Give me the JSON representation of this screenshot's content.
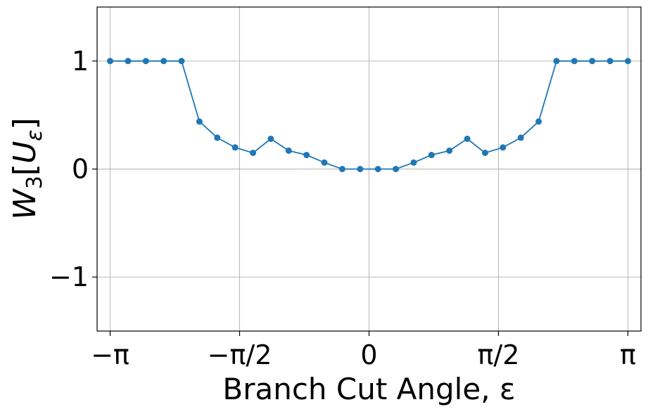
{
  "chart_data": {
    "type": "line",
    "title": "",
    "xlabel": "Branch Cut Angle, ε",
    "ylabel": {
      "main": "W",
      "subscript": "3",
      "open_bracket": "[",
      "inner": "U",
      "inner_subscript": "ε",
      "close_bracket": "]"
    },
    "xlim": [
      -3.3,
      3.3
    ],
    "ylim": [
      -1.5,
      1.5
    ],
    "x_ticks": [
      {
        "value": -3.14159,
        "label": "−π"
      },
      {
        "value": -1.5708,
        "label": "−π/2"
      },
      {
        "value": 0,
        "label": "0"
      },
      {
        "value": 1.5708,
        "label": "π/2"
      },
      {
        "value": 3.14159,
        "label": "π"
      }
    ],
    "y_ticks": [
      {
        "value": -1,
        "label": "−1"
      },
      {
        "value": 0,
        "label": "0"
      },
      {
        "value": 1,
        "label": "1"
      }
    ],
    "grid": true,
    "legend": "none",
    "series": [
      {
        "color": "#1f77b4",
        "marker": "circle",
        "x": [
          -3.1416,
          -2.9249,
          -2.7083,
          -2.4916,
          -2.275,
          -2.0583,
          -1.8417,
          -1.625,
          -1.4083,
          -1.1917,
          -0.975,
          -0.7583,
          -0.5417,
          -0.325,
          -0.1083,
          0.1083,
          0.325,
          0.5417,
          0.7583,
          0.975,
          1.1917,
          1.4083,
          1.625,
          1.8417,
          2.0583,
          2.275,
          2.4916,
          2.7083,
          2.9249,
          3.1416
        ],
        "y": [
          1.0,
          1.0,
          1.0,
          1.0,
          1.0,
          0.44,
          0.29,
          0.2,
          0.15,
          0.28,
          0.17,
          0.13,
          0.06,
          0.0,
          0.0,
          0.0,
          0.0,
          0.06,
          0.13,
          0.17,
          0.28,
          0.15,
          0.2,
          0.29,
          0.44,
          1.0,
          1.0,
          1.0,
          1.0,
          1.0
        ]
      }
    ]
  }
}
